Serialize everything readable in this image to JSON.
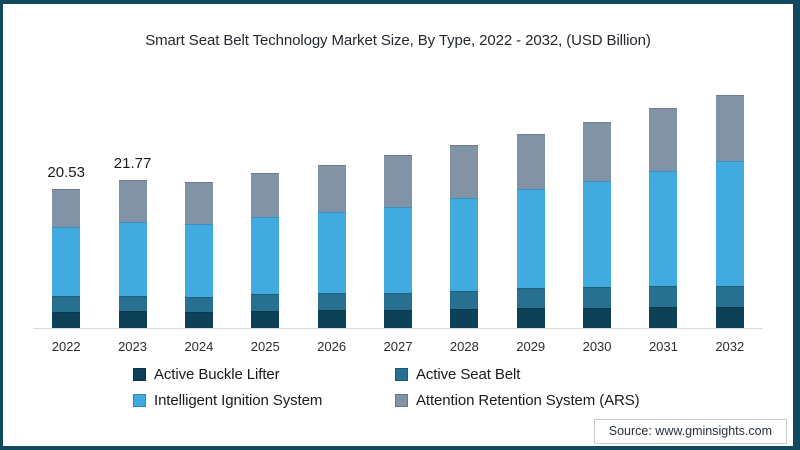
{
  "title": "Smart Seat Belt Technology Market Size, By Type, 2022 - 2032, (USD Billion)",
  "source_label": "Source: www.gminsights.com",
  "colors": {
    "frame_border": "#11495e",
    "axis_line": "#dcdcdc",
    "active_buckle_lifter": "#0d4157",
    "active_seat_belt": "#28708f",
    "intelligent_ignition_system": "#41aade",
    "attention_retention_system": "#8293a5"
  },
  "chart_data": {
    "type": "bar",
    "stacked": true,
    "title": "Smart Seat Belt Technology Market Size, By Type, 2022 - 2032, (USD Billion)",
    "xlabel": "",
    "ylabel": "USD Billion",
    "grid": false,
    "y_axis_visible": false,
    "legend_position": "bottom",
    "categories": [
      "2022",
      "2023",
      "2024",
      "2025",
      "2026",
      "2027",
      "2028",
      "2029",
      "2030",
      "2031",
      "2032"
    ],
    "series": [
      {
        "name": "Active Buckle Lifter",
        "color": "#0d4157",
        "values": [
          2.44,
          2.45,
          2.35,
          2.55,
          2.65,
          2.7,
          2.75,
          2.9,
          3.0,
          3.05,
          3.15
        ]
      },
      {
        "name": "Active Seat Belt",
        "color": "#28708f",
        "values": [
          2.22,
          2.25,
          2.3,
          2.4,
          2.45,
          2.5,
          2.75,
          2.95,
          3.0,
          3.1,
          3.05
        ]
      },
      {
        "name": "Intelligent Ignition System",
        "color": "#41aade",
        "values": [
          10.18,
          10.95,
          10.7,
          11.4,
          12.0,
          12.6,
          13.7,
          14.6,
          15.7,
          16.95,
          18.5
        ]
      },
      {
        "name": "Attention Retention System (ARS)",
        "color": "#8293a5",
        "values": [
          5.69,
          6.12,
          6.15,
          6.55,
          7.0,
          7.7,
          7.8,
          8.15,
          8.7,
          9.3,
          9.7
        ]
      }
    ],
    "value_labels": [
      "20.53",
      "21.77",
      "",
      "",
      "",
      "",
      "",
      "",
      "",
      "",
      ""
    ],
    "totals_shown": {
      "2022": 20.53,
      "2023": 21.77
    }
  }
}
